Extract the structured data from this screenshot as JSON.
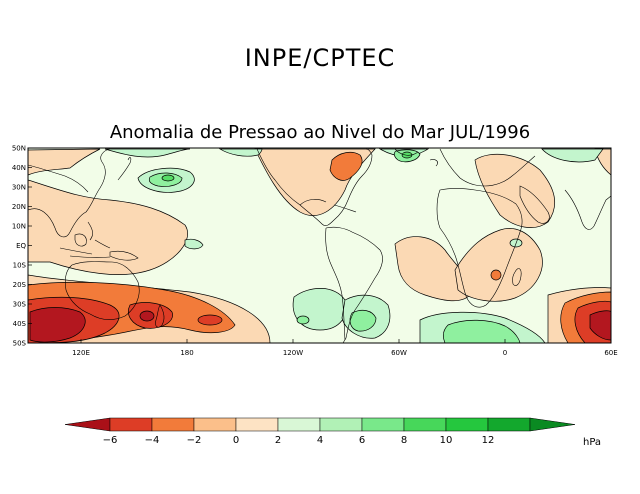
{
  "header": {
    "agency": "INPE/CPTEC"
  },
  "map": {
    "title": "Anomalia de Pressao ao Nivel do Mar JUL/1996",
    "lon_range": [
      90,
      420
    ],
    "lat_range": [
      -50,
      50
    ],
    "lat_labels": [
      "50N",
      "40N",
      "30N",
      "20N",
      "10N",
      "EQ",
      "10S",
      "20S",
      "30S",
      "40S",
      "50S"
    ],
    "lon_labels": [
      "120E",
      "180",
      "120W",
      "60W",
      "0",
      "60E"
    ],
    "colors": {
      "neg_strong": "#b3171f",
      "neg_mid": "#dd3d26",
      "neg_light": "#f27b3a",
      "neg_pale": "#fbd9b4",
      "neutral": "#f2fde8",
      "pos_pale": "#c3f5cd",
      "pos_light": "#8ff09f",
      "pos_mid": "#56dd66",
      "pos_strong": "#20b33d",
      "pos_dark": "#128a28",
      "land_line": "#000000",
      "contour_line": "#000000"
    }
  },
  "colorbar": {
    "ticks": [
      "−6",
      "−4",
      "−2",
      "0",
      "2",
      "4",
      "6",
      "8",
      "10",
      "12"
    ],
    "units": "hPa",
    "colors": [
      "#aa1018",
      "#dd3d26",
      "#f27b3a",
      "#fbbf8a",
      "#fde3c4",
      "#d9f7d6",
      "#b1f1b6",
      "#79e88a",
      "#47d75a",
      "#25c73e",
      "#13a82d",
      "#0a8a22"
    ]
  }
}
